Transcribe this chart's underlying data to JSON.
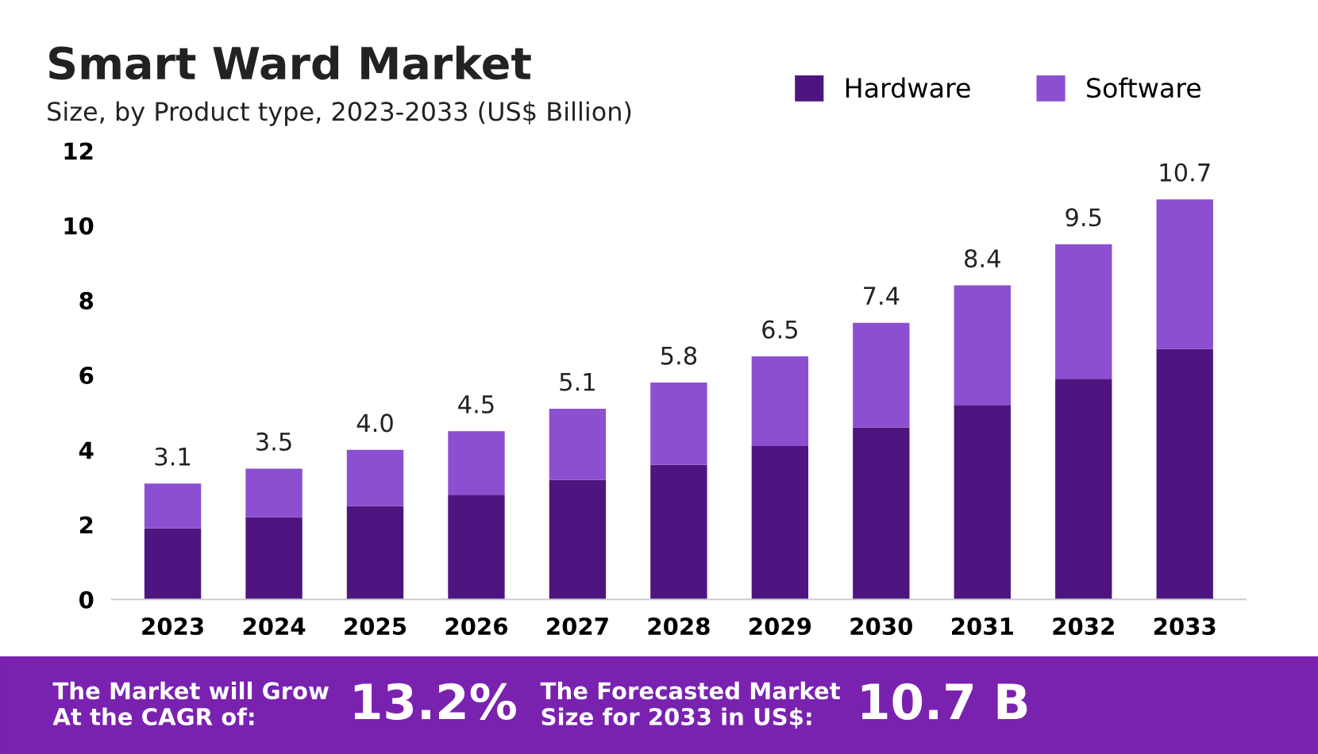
{
  "chart_data": {
    "type": "bar",
    "title": "Smart Ward Market",
    "subtitle": "Size, by Product type, 2023-2033 (US$ Billion)",
    "categories": [
      "2023",
      "2024",
      "2025",
      "2026",
      "2027",
      "2028",
      "2029",
      "2030",
      "2031",
      "2032",
      "2033"
    ],
    "stacked": true,
    "series": [
      {
        "name": "Hardware",
        "color": "#4e1580",
        "values": [
          1.9,
          2.2,
          2.5,
          2.8,
          3.2,
          3.6,
          4.1,
          4.6,
          5.2,
          5.9,
          6.7
        ]
      },
      {
        "name": "Software",
        "color": "#8c4fd0",
        "values": [
          1.2,
          1.3,
          1.5,
          1.7,
          1.9,
          2.2,
          2.4,
          2.8,
          3.2,
          3.6,
          4.0
        ]
      }
    ],
    "totals": [
      "3.1",
      "3.5",
      "4.0",
      "4.5",
      "5.1",
      "5.8",
      "6.5",
      "7.4",
      "8.4",
      "9.5",
      "10.7"
    ],
    "ylim": [
      0,
      12
    ],
    "yticks": [
      0,
      2,
      4,
      6,
      8,
      10,
      12
    ],
    "grid": false,
    "legend": "top right",
    "annotations": [
      "The Market will Grow\nAt the CAGR of:",
      "13.2%",
      "The Forecasted Market\nSize for 2033 in US$:",
      "10.7 B"
    ]
  }
}
